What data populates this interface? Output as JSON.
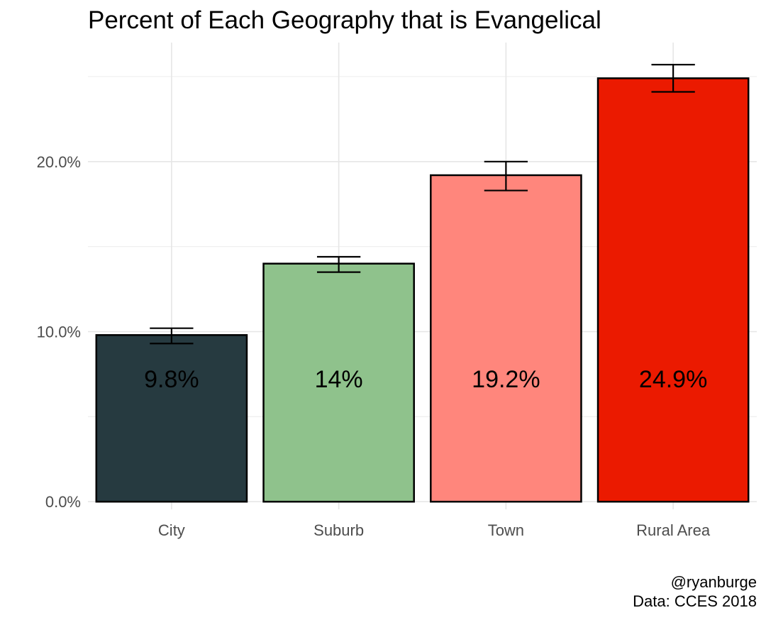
{
  "chart_data": {
    "type": "bar",
    "title": "Percent of Each Geography that is Evangelical",
    "xlabel": "",
    "ylabel": "",
    "categories": [
      "City",
      "Suburb",
      "Town",
      "Rural Area"
    ],
    "values": [
      0.098,
      0.14,
      0.192,
      0.249
    ],
    "value_labels": [
      "9.8%",
      "14%",
      "19.2%",
      "24.9%"
    ],
    "error_low": [
      0.093,
      0.135,
      0.183,
      0.241
    ],
    "error_high": [
      0.102,
      0.144,
      0.2,
      0.257
    ],
    "colors": [
      "#263a40",
      "#8fc28c",
      "#ff867c",
      "#eb1a00"
    ],
    "ylim": [
      -0.0045,
      0.27
    ],
    "yticks": [
      0,
      0.1,
      0.2
    ],
    "ytick_labels": [
      "0.0%",
      "10.0%",
      "20.0%"
    ],
    "grid": true,
    "legend": "none",
    "caption": [
      "@ryanburge",
      "Data: CCES 2018"
    ]
  }
}
